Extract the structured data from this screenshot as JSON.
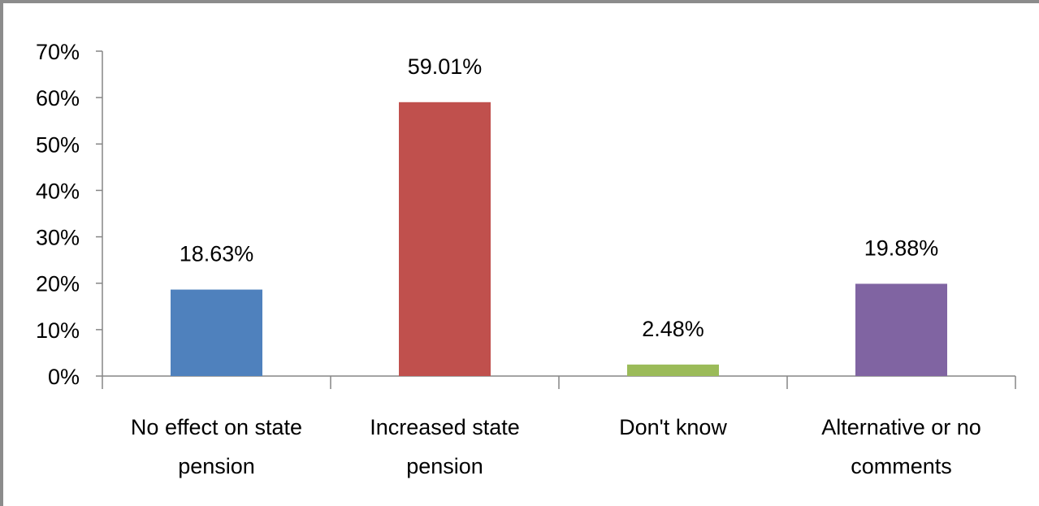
{
  "chart_data": {
    "type": "bar",
    "categories": [
      [
        "No effect on state",
        "pension"
      ],
      [
        "Increased state",
        "pension"
      ],
      [
        "Don't know"
      ],
      [
        "Alternative or no",
        "comments"
      ]
    ],
    "values": [
      18.63,
      59.01,
      2.48,
      19.88
    ],
    "data_labels": [
      "18.63%",
      "59.01%",
      "2.48%",
      "19.88%"
    ],
    "colors": [
      "#4f81bd",
      "#c0504d",
      "#9bbb59",
      "#8064a2"
    ],
    "ylim": [
      0,
      70
    ],
    "y_ticks": [
      0,
      10,
      20,
      30,
      40,
      50,
      60,
      70
    ],
    "y_tick_labels": [
      "0%",
      "10%",
      "20%",
      "30%",
      "40%",
      "50%",
      "60%",
      "70%"
    ],
    "legend": "none",
    "grid": false
  }
}
